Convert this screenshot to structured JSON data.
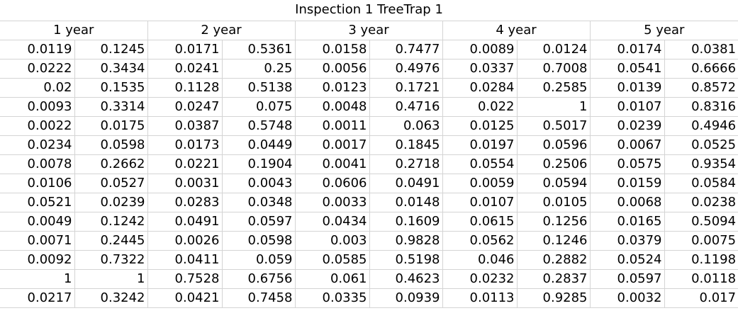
{
  "title": "Inspection 1 TreeTrap 1",
  "year_headers": [
    "1 year",
    "2 year",
    "3 year",
    "4 year",
    "5 year"
  ],
  "rows": [
    [
      "0.0119",
      "0.1245",
      "0.0171",
      "0.5361",
      "0.0158",
      "0.7477",
      "0.0089",
      "0.0124",
      "0.0174",
      "0.0381"
    ],
    [
      "0.0222",
      "0.3434",
      "0.0241",
      "0.25",
      "0.0056",
      "0.4976",
      "0.0337",
      "0.7008",
      "0.0541",
      "0.6666"
    ],
    [
      "0.02",
      "0.1535",
      "0.1128",
      "0.5138",
      "0.0123",
      "0.1721",
      "0.0284",
      "0.2585",
      "0.0139",
      "0.8572"
    ],
    [
      "0.0093",
      "0.3314",
      "0.0247",
      "0.075",
      "0.0048",
      "0.4716",
      "0.022",
      "1",
      "0.0107",
      "0.8316"
    ],
    [
      "0.0022",
      "0.0175",
      "0.0387",
      "0.5748",
      "0.0011",
      "0.063",
      "0.0125",
      "0.5017",
      "0.0239",
      "0.4946"
    ],
    [
      "0.0234",
      "0.0598",
      "0.0173",
      "0.0449",
      "0.0017",
      "0.1845",
      "0.0197",
      "0.0596",
      "0.0067",
      "0.0525"
    ],
    [
      "0.0078",
      "0.2662",
      "0.0221",
      "0.1904",
      "0.0041",
      "0.2718",
      "0.0554",
      "0.2506",
      "0.0575",
      "0.9354"
    ],
    [
      "0.0106",
      "0.0527",
      "0.0031",
      "0.0043",
      "0.0606",
      "0.0491",
      "0.0059",
      "0.0594",
      "0.0159",
      "0.0584"
    ],
    [
      "0.0521",
      "0.0239",
      "0.0283",
      "0.0348",
      "0.0033",
      "0.0148",
      "0.0107",
      "0.0105",
      "0.0068",
      "0.0238"
    ],
    [
      "0.0049",
      "0.1242",
      "0.0491",
      "0.0597",
      "0.0434",
      "0.1609",
      "0.0615",
      "0.1256",
      "0.0165",
      "0.5094"
    ],
    [
      "0.0071",
      "0.2445",
      "0.0026",
      "0.0598",
      "0.003",
      "0.9828",
      "0.0562",
      "0.1246",
      "0.0379",
      "0.0075"
    ],
    [
      "0.0092",
      "0.7322",
      "0.0411",
      "0.059",
      "0.0585",
      "0.5198",
      "0.046",
      "0.2882",
      "0.0524",
      "0.1198"
    ],
    [
      "1",
      "1",
      "0.7528",
      "0.6756",
      "0.061",
      "0.4623",
      "0.0232",
      "0.2837",
      "0.0597",
      "0.0118"
    ],
    [
      "0.0217",
      "0.3242",
      "0.0421",
      "0.7458",
      "0.0335",
      "0.0939",
      "0.0113",
      "0.9285",
      "0.0032",
      "0.017"
    ]
  ]
}
